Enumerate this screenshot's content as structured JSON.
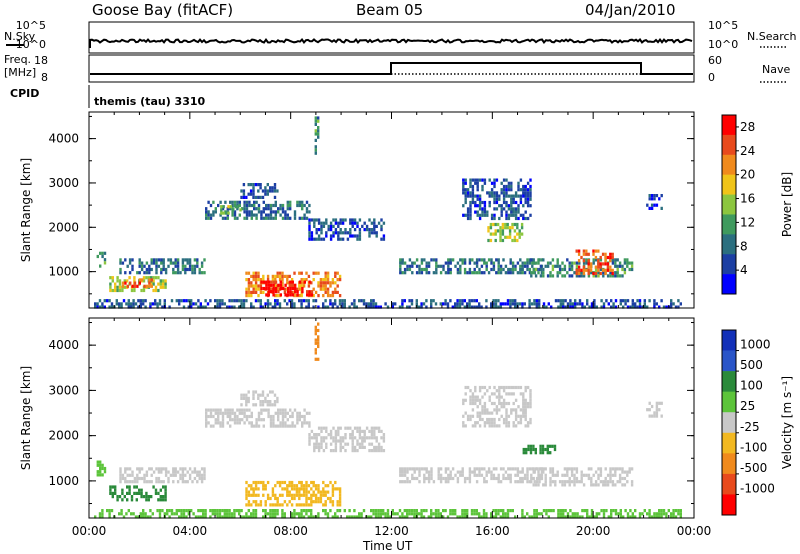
{
  "header": {
    "station": "Goose Bay (fitACF)",
    "beam": "Beam 05",
    "date": "04/Jan/2010"
  },
  "strip_panels": {
    "nsky_label": "N.Sky",
    "nsearch_label": "N.Search",
    "freq_label_top": "Freq.",
    "freq_label_unit": "[MHz]",
    "nave_label": "Nave",
    "cpid_label": "CPID",
    "cpid_value": "themis (tau) 3310",
    "left_ticks_counts": [
      "10^5",
      "10^0"
    ],
    "right_ticks_counts": [
      "10^5",
      "10^0"
    ],
    "left_ticks_freq": [
      "18",
      "8"
    ],
    "right_ticks_nave": [
      "60",
      "0"
    ]
  },
  "colors": {
    "power_scale": [
      "#0000ff",
      "#1c3fa3",
      "#2b6f7f",
      "#3f9a5e",
      "#8cc63f",
      "#f0c419",
      "#f08a1c",
      "#e84a1c",
      "#ff0000"
    ],
    "velocity_scale": [
      "#1230b8",
      "#2a55c8",
      "#2a8a3a",
      "#5cc43a",
      "#c8c8c8",
      "#f2b820",
      "#f08a1c",
      "#e84a1c",
      "#ff0000"
    ],
    "ground_scatter": "#c0c0c0"
  },
  "chart_data": [
    {
      "type": "heatmap",
      "panel": "power",
      "xlabel": "Time UT",
      "ylabel": "Slant Range [km]",
      "x_ticks": [
        "00:00",
        "04:00",
        "08:00",
        "12:00",
        "16:00",
        "20:00",
        "00:00"
      ],
      "xlim_hours": [
        0,
        24
      ],
      "y_ticks": [
        1000,
        2000,
        3000,
        4000
      ],
      "ylim_km": [
        180,
        4600
      ],
      "colorbar_label": "Power [dB]",
      "colorbar_ticks": [
        4,
        8,
        12,
        16,
        20,
        24,
        28
      ],
      "colorbar_range": [
        0,
        30
      ],
      "regions": [
        {
          "t0": 0.3,
          "t1": 0.6,
          "r0": 1150,
          "r1": 1450,
          "value": 10
        },
        {
          "t0": 0.8,
          "t1": 3.0,
          "r0": 580,
          "r1": 900,
          "value": 16
        },
        {
          "t0": 1.3,
          "t1": 2.5,
          "r0": 700,
          "r1": 850,
          "value": 24
        },
        {
          "t0": 1.2,
          "t1": 4.6,
          "r0": 1000,
          "r1": 1300,
          "value": 8
        },
        {
          "t0": 4.6,
          "t1": 8.7,
          "r0": 2200,
          "r1": 2600,
          "value": 8
        },
        {
          "t0": 5.2,
          "t1": 6.0,
          "r0": 2300,
          "r1": 2500,
          "value": 14
        },
        {
          "t0": 6.0,
          "t1": 7.5,
          "r0": 2650,
          "r1": 3000,
          "value": 6
        },
        {
          "t0": 8.7,
          "t1": 11.7,
          "r0": 1700,
          "r1": 2200,
          "value": 6
        },
        {
          "t0": 6.2,
          "t1": 10.0,
          "r0": 450,
          "r1": 1000,
          "value": 22
        },
        {
          "t0": 6.8,
          "t1": 8.8,
          "r0": 480,
          "r1": 800,
          "value": 29
        },
        {
          "t0": 0.2,
          "t1": 23.5,
          "r0": 200,
          "r1": 380,
          "value": 6
        },
        {
          "t0": 12.3,
          "t1": 18.0,
          "r0": 1000,
          "r1": 1300,
          "value": 8
        },
        {
          "t0": 14.8,
          "t1": 17.5,
          "r0": 2200,
          "r1": 3100,
          "value": 6
        },
        {
          "t0": 15.8,
          "t1": 17.2,
          "r0": 1700,
          "r1": 2100,
          "value": 15
        },
        {
          "t0": 17.5,
          "t1": 21.5,
          "r0": 900,
          "r1": 1300,
          "value": 10
        },
        {
          "t0": 19.3,
          "t1": 20.8,
          "r0": 950,
          "r1": 1500,
          "value": 24
        },
        {
          "t0": 8.95,
          "t1": 9.05,
          "r0": 3700,
          "r1": 4500,
          "value": 10
        },
        {
          "t0": 22.1,
          "t1": 22.7,
          "r0": 2400,
          "r1": 2750,
          "value": 4
        }
      ]
    },
    {
      "type": "heatmap",
      "panel": "velocity",
      "xlabel": "Time UT",
      "ylabel": "Slant Range [km]",
      "x_ticks": [
        "00:00",
        "04:00",
        "08:00",
        "12:00",
        "16:00",
        "20:00",
        "00:00"
      ],
      "xlim_hours": [
        0,
        24
      ],
      "y_ticks": [
        1000,
        2000,
        3000,
        4000
      ],
      "ylim_km": [
        180,
        4600
      ],
      "colorbar_label": "Velocity [m s⁻¹]",
      "colorbar_ticks": [
        1000,
        500,
        100,
        25,
        -25,
        -100,
        -500,
        -1000
      ],
      "regions": [
        {
          "t0": 0.3,
          "t1": 0.6,
          "r0": 1150,
          "r1": 1450,
          "value": 100
        },
        {
          "t0": 0.8,
          "t1": 3.0,
          "r0": 580,
          "r1": 900,
          "value": 120
        },
        {
          "t0": 1.2,
          "t1": 4.6,
          "r0": 1000,
          "r1": 1300,
          "value": 0
        },
        {
          "t0": 4.6,
          "t1": 8.7,
          "r0": 2200,
          "r1": 2600,
          "value": 0
        },
        {
          "t0": 6.0,
          "t1": 7.5,
          "r0": 2650,
          "r1": 3000,
          "value": 0
        },
        {
          "t0": 8.7,
          "t1": 11.7,
          "r0": 1700,
          "r1": 2200,
          "value": 0
        },
        {
          "t0": 6.2,
          "t1": 10.0,
          "r0": 450,
          "r1": 1000,
          "value": -60
        },
        {
          "t0": 0.2,
          "t1": 23.5,
          "r0": 200,
          "r1": 380,
          "value": 60
        },
        {
          "t0": 12.3,
          "t1": 18.0,
          "r0": 1000,
          "r1": 1300,
          "value": 0
        },
        {
          "t0": 14.8,
          "t1": 17.5,
          "r0": 2200,
          "r1": 3100,
          "value": 0
        },
        {
          "t0": 17.2,
          "t1": 18.5,
          "r0": 1600,
          "r1": 1800,
          "value": 120
        },
        {
          "t0": 17.5,
          "t1": 21.5,
          "r0": 900,
          "r1": 1300,
          "value": 0
        },
        {
          "t0": 8.95,
          "t1": 9.05,
          "r0": 3700,
          "r1": 4500,
          "value": -400
        },
        {
          "t0": 22.1,
          "t1": 22.7,
          "r0": 2400,
          "r1": 2750,
          "value": 0
        }
      ]
    }
  ]
}
